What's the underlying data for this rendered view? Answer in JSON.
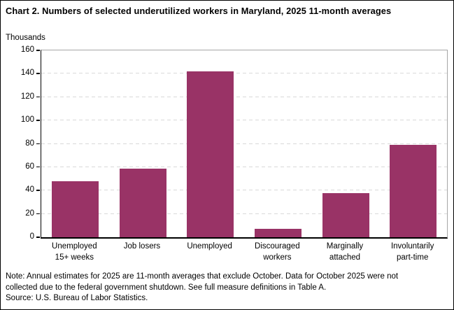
{
  "chart_data": {
    "type": "bar",
    "title": "Chart 2. Numbers of selected underutilized workers in Maryland, 2025 11-month averages",
    "ylabel": "Thousands",
    "xlabel": "",
    "categories": [
      "Unemployed 15+ weeks",
      "Job losers",
      "Unemployed",
      "Discouraged workers",
      "Marginally attached",
      "Involuntarily part-time"
    ],
    "category_label_lines": [
      [
        "Unemployed",
        "15+ weeks"
      ],
      [
        "Job losers",
        ""
      ],
      [
        "Unemployed",
        ""
      ],
      [
        "Discouraged",
        "workers"
      ],
      [
        "Marginally",
        "attached"
      ],
      [
        "Involuntarily",
        "part-time"
      ]
    ],
    "values": [
      48,
      59,
      142,
      7,
      38,
      79
    ],
    "ylim": [
      0,
      160
    ],
    "ytick_step": 20,
    "grid": true,
    "legend": false
  },
  "notes": {
    "note_lines": [
      "Note: Annual estimates for 2025 are 11-month averages that exclude October. Data for October 2025 were not",
      "collected due to the federal government shutdown. See full measure definitions in Table A."
    ],
    "source": "Source: U.S. Bureau of Labor Statistics."
  },
  "colors": {
    "bar": "#993366",
    "gridline": "#d9d9d9",
    "plot_border": "#a6a6a6",
    "axis": "#000000",
    "text": "#000000"
  }
}
